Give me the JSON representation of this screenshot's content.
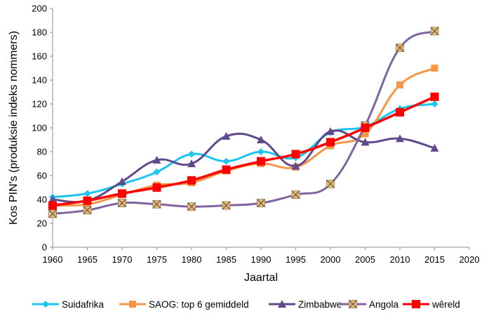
{
  "chart_data": {
    "type": "line",
    "title": "",
    "xlabel": "Jaartal",
    "ylabel": "Kos PIN's (produksie indeks nommers)",
    "xlim": [
      1960,
      2020
    ],
    "ylim": [
      0,
      200
    ],
    "xticks": [
      "1960",
      "1965",
      "1970",
      "1975",
      "1980",
      "1985",
      "1990",
      "1995",
      "2000",
      "2005",
      "2010",
      "2015",
      "2020"
    ],
    "yticks": [
      "0",
      "20",
      "40",
      "60",
      "80",
      "100",
      "120",
      "140",
      "160",
      "180",
      "200"
    ],
    "grid": false,
    "legend_position": "bottom",
    "x": [
      1960,
      1965,
      1970,
      1975,
      1980,
      1985,
      1990,
      1995,
      2000,
      2005,
      2010,
      2015
    ],
    "series": [
      {
        "name": "Suidafrika",
        "color": "#1ac6f0",
        "marker": "diamond",
        "values": [
          42,
          45,
          53,
          63,
          78,
          72,
          80,
          75,
          96,
          101,
          116,
          120
        ]
      },
      {
        "name": "SAOG: top 6 gemiddeld",
        "color": "#f79646",
        "marker": "square",
        "values": [
          35,
          36,
          44,
          52,
          54,
          64,
          70,
          67,
          85,
          95,
          136,
          150
        ]
      },
      {
        "name": "Zimbabwe",
        "color": "#604a8b",
        "marker": "triangle",
        "values": [
          40,
          39,
          55,
          73,
          70,
          93,
          90,
          68,
          97,
          88,
          91,
          83
        ]
      },
      {
        "name": "Angola",
        "color": "#8064a2",
        "marker": "xsquare",
        "values": [
          28,
          31,
          37,
          36,
          34,
          35,
          37,
          44,
          53,
          102,
          167,
          181
        ]
      },
      {
        "name": "wêreld",
        "color": "#ff0000",
        "marker": "square",
        "values": [
          35,
          39,
          45,
          50,
          56,
          65,
          72,
          78,
          88,
          100,
          113,
          126
        ]
      }
    ]
  }
}
